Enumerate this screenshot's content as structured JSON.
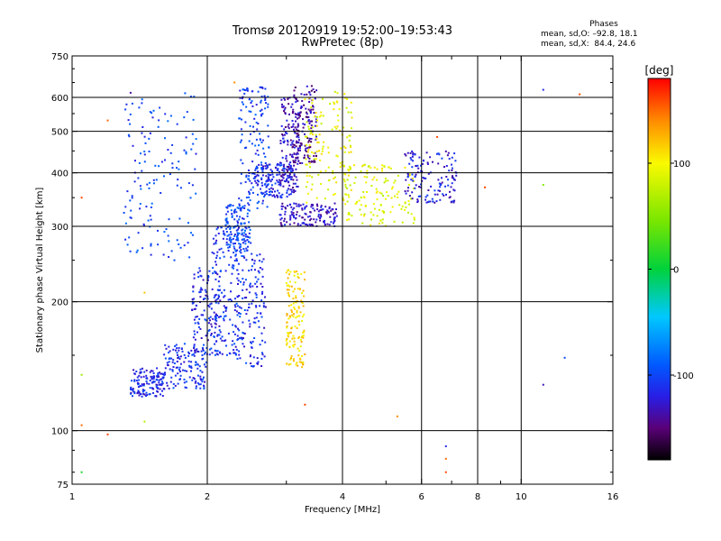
{
  "header": {
    "title": "Tromsø 20120919 19:52:00–19:53:43",
    "subtitle": "RwPretec (8p)"
  },
  "phase_stats": {
    "heading": "Phases",
    "line_o": "mean, sd,O: –92.8, 18.1",
    "line_x": "mean, sd,X:  84.4, 24.6"
  },
  "colorbar": {
    "label": "[deg]",
    "tick_labels": [
      "100",
      "0",
      "-100"
    ],
    "tick_values": [
      100,
      0,
      -100
    ],
    "range": [
      -180,
      180
    ]
  },
  "chart_data": {
    "type": "scatter",
    "xlabel": "Frequency [MHz]",
    "ylabel": "Stationary phase Virtual Height [km]",
    "xscale": "log",
    "yscale": "log",
    "xlim": [
      1,
      16
    ],
    "ylim": [
      75,
      750
    ],
    "x_tick_labels": [
      "1",
      "2",
      "4",
      "6",
      "8",
      "10",
      "16"
    ],
    "x_tick_values": [
      1,
      2,
      4,
      6,
      8,
      10,
      16
    ],
    "x_minor_ticks": [
      3,
      5,
      7,
      9
    ],
    "y_tick_labels": [
      "750",
      "600",
      "500",
      "400",
      "300",
      "200",
      "100",
      "75"
    ],
    "y_tick_values": [
      750,
      600,
      500,
      400,
      300,
      200,
      100,
      75
    ],
    "grid": true,
    "x_grid_values": [
      2,
      4,
      6,
      8,
      10
    ],
    "y_grid_values": [
      600,
      500,
      400,
      300,
      200,
      100
    ],
    "color_by": "phase [deg]",
    "clusters": [
      {
        "x": [
          1.35,
          1.6
        ],
        "y": [
          120,
          140
        ],
        "phase": -115
      },
      {
        "x": [
          1.6,
          2.0
        ],
        "y": [
          125,
          160
        ],
        "phase": -110
      },
      {
        "x": [
          1.85,
          2.15
        ],
        "y": [
          150,
          240
        ],
        "phase": -115
      },
      {
        "x": [
          2.05,
          2.4
        ],
        "y": [
          150,
          310
        ],
        "phase": -108
      },
      {
        "x": [
          2.3,
          2.7
        ],
        "y": [
          140,
          260
        ],
        "phase": -112
      },
      {
        "x": [
          2.35,
          2.75
        ],
        "y": [
          330,
          640
        ],
        "phase": -105
      },
      {
        "x": [
          2.5,
          3.1
        ],
        "y": [
          350,
          420
        ],
        "phase": -112
      },
      {
        "x": [
          2.2,
          2.5
        ],
        "y": [
          260,
          340
        ],
        "phase": -100
      },
      {
        "x": [
          2.9,
          3.2
        ],
        "y": [
          360,
          600
        ],
        "phase": -130
      },
      {
        "x": [
          3.1,
          3.5
        ],
        "y": [
          420,
          640
        ],
        "phase": -140
      },
      {
        "x": [
          2.9,
          3.9
        ],
        "y": [
          300,
          340
        ],
        "phase": -128
      },
      {
        "x": [
          3.0,
          3.3
        ],
        "y": [
          140,
          240
        ],
        "phase": 110
      },
      {
        "x": [
          3.3,
          4.2
        ],
        "y": [
          340,
          620
        ],
        "phase": 95
      },
      {
        "x": [
          4.0,
          5.8
        ],
        "y": [
          300,
          420
        ],
        "phase": 90
      },
      {
        "x": [
          5.5,
          7.2
        ],
        "y": [
          340,
          450
        ],
        "phase": -120
      },
      {
        "x": [
          1.3,
          1.9
        ],
        "y": [
          250,
          620
        ],
        "phase": -100
      }
    ],
    "outliers": [
      {
        "x": 1.05,
        "y": 80,
        "phase": 10
      },
      {
        "x": 1.05,
        "y": 103,
        "phase": 150
      },
      {
        "x": 1.05,
        "y": 135,
        "phase": 60
      },
      {
        "x": 1.05,
        "y": 350,
        "phase": 160
      },
      {
        "x": 1.2,
        "y": 98,
        "phase": 160
      },
      {
        "x": 1.2,
        "y": 530,
        "phase": 150
      },
      {
        "x": 1.35,
        "y": 615,
        "phase": -140
      },
      {
        "x": 1.45,
        "y": 105,
        "phase": 70
      },
      {
        "x": 1.45,
        "y": 210,
        "phase": 120
      },
      {
        "x": 2.3,
        "y": 650,
        "phase": 140
      },
      {
        "x": 3.3,
        "y": 115,
        "phase": 160
      },
      {
        "x": 5.3,
        "y": 108,
        "phase": 140
      },
      {
        "x": 6.5,
        "y": 485,
        "phase": 160
      },
      {
        "x": 6.8,
        "y": 92,
        "phase": -115
      },
      {
        "x": 6.8,
        "y": 86,
        "phase": 150
      },
      {
        "x": 6.8,
        "y": 80,
        "phase": 160
      },
      {
        "x": 8.3,
        "y": 370,
        "phase": 160
      },
      {
        "x": 11.2,
        "y": 625,
        "phase": -115
      },
      {
        "x": 11.2,
        "y": 375,
        "phase": 50
      },
      {
        "x": 11.2,
        "y": 128,
        "phase": -130
      },
      {
        "x": 12.5,
        "y": 148,
        "phase": -100
      },
      {
        "x": 13.5,
        "y": 610,
        "phase": 160
      }
    ]
  }
}
